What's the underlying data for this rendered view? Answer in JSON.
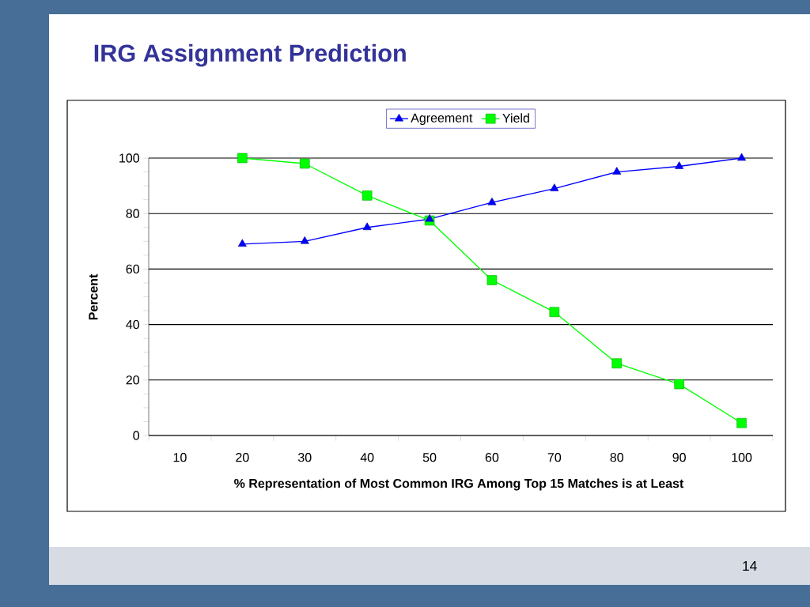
{
  "chart_data": {
    "type": "line",
    "title": "IRG Assignment Prediction",
    "xlabel": "% Representation of Most Common IRG Among Top 15 Matches is at Least",
    "ylabel": "Percent",
    "categories": [
      "10",
      "20",
      "30",
      "40",
      "50",
      "60",
      "70",
      "80",
      "90",
      "100"
    ],
    "series": [
      {
        "name": "Agreement",
        "color": "#0000ff",
        "marker": "triangle",
        "values": [
          null,
          69,
          70,
          75,
          78,
          84,
          89,
          95,
          97,
          100
        ]
      },
      {
        "name": "Yield",
        "color": "#00ff00",
        "marker": "square",
        "values": [
          null,
          100,
          98,
          86.5,
          77.5,
          56,
          44.5,
          26,
          18.5,
          4.5
        ]
      }
    ],
    "ylim": [
      0,
      100
    ],
    "yticks": [
      0,
      20,
      40,
      60,
      80,
      100
    ],
    "grid": "y",
    "legend": "top",
    "annotations": [
      "14"
    ]
  }
}
